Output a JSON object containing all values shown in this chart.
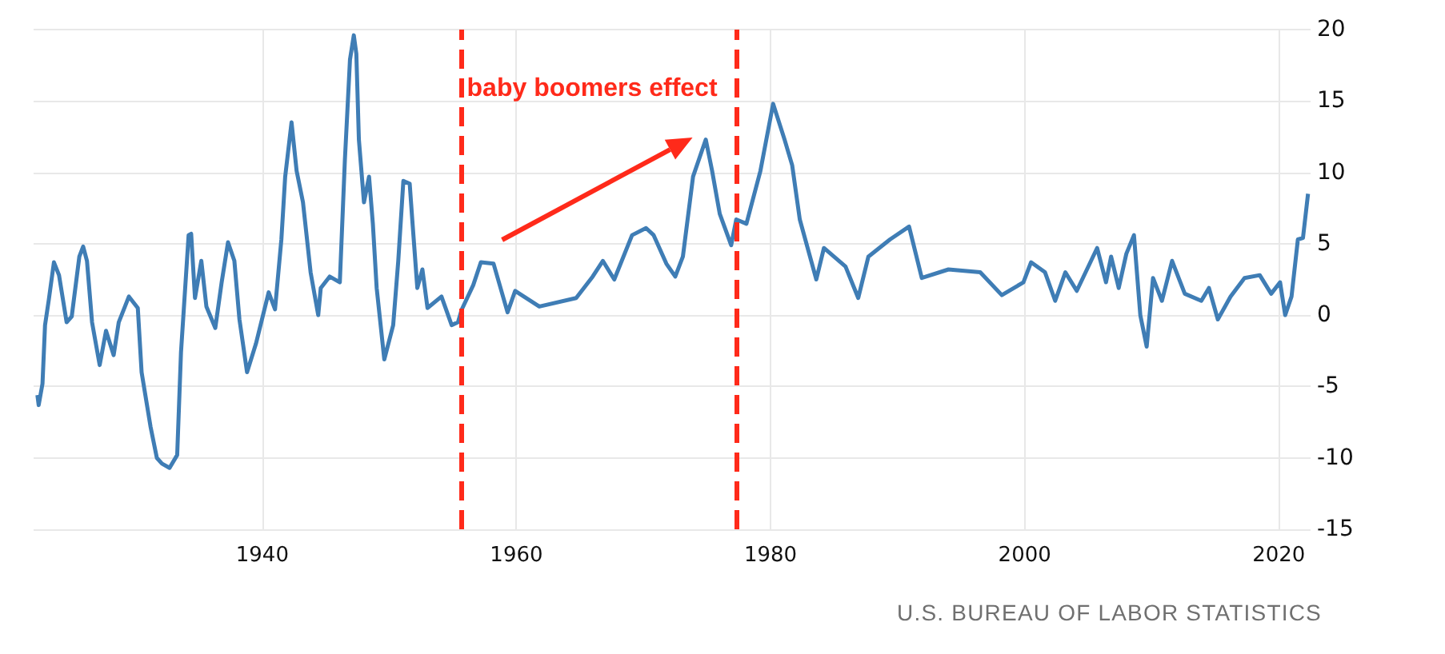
{
  "chart_data": {
    "type": "line",
    "x": [
      1922.3,
      1922.4,
      1922.7,
      1922.9,
      1923.2,
      1923.6,
      1924.0,
      1924.6,
      1925.0,
      1925.6,
      1925.9,
      1926.2,
      1926.6,
      1927.2,
      1927.7,
      1928.3,
      1928.7,
      1929.5,
      1930.2,
      1930.5,
      1931.2,
      1931.7,
      1932.1,
      1932.7,
      1933.3,
      1933.6,
      1934.2,
      1934.4,
      1934.7,
      1935.2,
      1935.6,
      1936.3,
      1936.8,
      1937.3,
      1937.8,
      1938.2,
      1938.8,
      1939.5,
      1940.5,
      1941.0,
      1941.5,
      1941.8,
      1942.3,
      1942.7,
      1943.2,
      1943.8,
      1944.4,
      1944.6,
      1945.3,
      1946.1,
      1946.5,
      1946.9,
      1947.2,
      1947.4,
      1947.6,
      1948.0,
      1948.4,
      1948.7,
      1949.0,
      1949.6,
      1950.3,
      1950.7,
      1951.1,
      1951.6,
      1951.8,
      1952.2,
      1952.6,
      1953.0,
      1954.1,
      1954.9,
      1955.4,
      1955.7,
      1956.6,
      1957.2,
      1958.2,
      1959.3,
      1959.9,
      1961.8,
      1964.7,
      1966.0,
      1966.8,
      1967.7,
      1969.1,
      1970.2,
      1970.8,
      1971.8,
      1972.5,
      1973.1,
      1973.9,
      1974.9,
      1975.4,
      1976.0,
      1976.9,
      1977.3,
      1978.1,
      1979.2,
      1980.2,
      1981.1,
      1981.7,
      1982.3,
      1983.6,
      1984.2,
      1985.9,
      1986.9,
      1987.7,
      1989.4,
      1990.9,
      1991.9,
      1994.0,
      1996.5,
      1998.2,
      1999.9,
      2000.5,
      2001.6,
      2002.4,
      2003.2,
      2004.1,
      2005.7,
      2006.4,
      2006.8,
      2007.4,
      2008.0,
      2008.6,
      2009.1,
      2009.6,
      2010.1,
      2010.8,
      2011.6,
      2012.6,
      2013.9,
      2014.5,
      2015.2,
      2016.2,
      2017.3,
      2018.5,
      2019.4,
      2020.1,
      2020.5,
      2021.0,
      2021.5,
      2021.9,
      2022.3
    ],
    "series": [
      {
        "color": "#3f7db5",
        "values": [
          -5.6,
          -6.3,
          -4.8,
          -0.7,
          1.1,
          3.7,
          2.8,
          -0.5,
          -0.1,
          4.1,
          4.8,
          3.8,
          -0.5,
          -3.5,
          -1.1,
          -2.8,
          -0.5,
          1.3,
          0.5,
          -4.0,
          -7.8,
          -10.0,
          -10.4,
          -10.7,
          -9.8,
          -2.6,
          5.6,
          5.7,
          1.2,
          3.8,
          0.6,
          -0.9,
          2.3,
          5.1,
          3.8,
          -0.3,
          -4.0,
          -2.0,
          1.6,
          0.4,
          5.3,
          9.7,
          13.5,
          10.1,
          7.9,
          3.0,
          0.0,
          1.9,
          2.7,
          2.3,
          10.9,
          17.9,
          19.6,
          18.3,
          12.3,
          7.9,
          9.7,
          6.4,
          1.9,
          -3.1,
          -0.7,
          3.8,
          9.4,
          9.2,
          6.7,
          1.9,
          3.2,
          0.5,
          1.3,
          -0.7,
          -0.5,
          0.4,
          2.1,
          3.7,
          3.6,
          0.2,
          1.7,
          0.6,
          1.2,
          2.7,
          3.8,
          2.5,
          5.6,
          6.1,
          5.6,
          3.6,
          2.7,
          4.1,
          9.7,
          12.3,
          10.1,
          7.1,
          4.9,
          6.7,
          6.4,
          10.1,
          14.8,
          12.3,
          10.5,
          6.7,
          2.5,
          4.7,
          3.4,
          1.2,
          4.1,
          5.3,
          6.2,
          2.6,
          3.2,
          3.0,
          1.4,
          2.3,
          3.7,
          3.0,
          1.0,
          3.0,
          1.7,
          4.7,
          2.3,
          4.1,
          1.9,
          4.3,
          5.6,
          0.0,
          -2.2,
          2.6,
          1.0,
          3.8,
          1.5,
          1.0,
          1.9,
          -0.3,
          1.3,
          2.6,
          2.8,
          1.5,
          2.3,
          0.0,
          1.3,
          5.3,
          5.4,
          8.5
        ]
      }
    ],
    "xlim": [
      1922,
      2022.5
    ],
    "xticks": [
      1940,
      1960,
      1980,
      2000,
      2020
    ],
    "ylim": [
      -15,
      20
    ],
    "yticks": [
      -15,
      -10,
      -5,
      0,
      5,
      10,
      15,
      20
    ],
    "grid": true,
    "marker": "none",
    "line_style": "solid",
    "ref_lines": [
      {
        "axis": "x",
        "value": 1955.6,
        "color": "#ff2a1a",
        "line_style": "dashed"
      },
      {
        "axis": "x",
        "value": 1977.3,
        "color": "#ff2a1a",
        "line_style": "dashed"
      }
    ],
    "annotations": [
      "baby boomers effect",
      "U.S. BUREAU OF LABOR STATISTICS"
    ]
  }
}
